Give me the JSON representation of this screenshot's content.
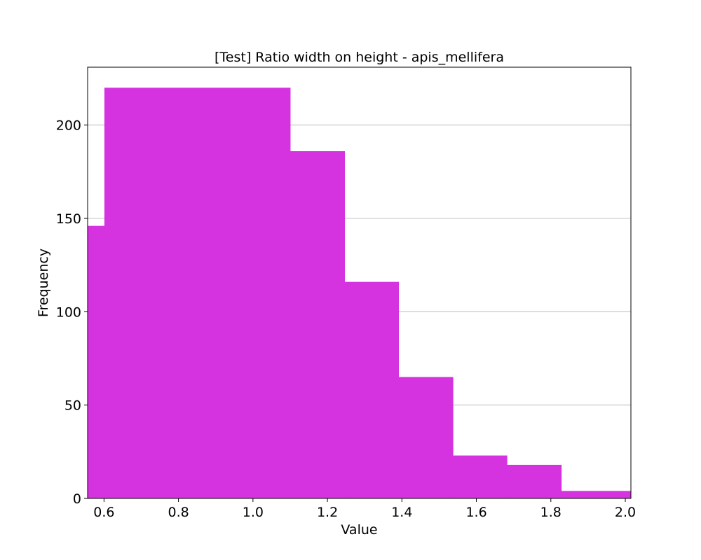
{
  "chart_data": {
    "type": "bar",
    "title": "[Test] Ratio width on height - apis_mellifera",
    "xlabel": "Value",
    "ylabel": "Frequency",
    "xlim": [
      0.556,
      2.015
    ],
    "ylim": [
      0,
      231
    ],
    "grid": "y",
    "color": "#d633e0",
    "bins": [
      {
        "x0": 0.556,
        "x1": 0.601,
        "value": 146
      },
      {
        "x0": 0.601,
        "x1": 0.746,
        "value": 220
      },
      {
        "x0": 0.746,
        "x1": 0.891,
        "value": 220
      },
      {
        "x0": 0.891,
        "x1": 1.1,
        "value": 220
      },
      {
        "x0": 1.1,
        "x1": 1.246,
        "value": 186
      },
      {
        "x0": 1.246,
        "x1": 1.391,
        "value": 116
      },
      {
        "x0": 1.391,
        "x1": 1.537,
        "value": 65
      },
      {
        "x0": 1.537,
        "x1": 1.682,
        "value": 23
      },
      {
        "x0": 1.682,
        "x1": 1.828,
        "value": 18
      },
      {
        "x0": 1.828,
        "x1": 2.015,
        "value": 4
      }
    ],
    "xticks": [
      0.6,
      0.8,
      1.0,
      1.2,
      1.4,
      1.6,
      1.8,
      2.0
    ],
    "xtick_labels": [
      "0.6",
      "0.8",
      "1.0",
      "1.2",
      "1.4",
      "1.6",
      "1.8",
      "2.0"
    ],
    "yticks": [
      0,
      50,
      100,
      150,
      200
    ],
    "ytick_labels": [
      "0",
      "50",
      "100",
      "150",
      "200"
    ]
  }
}
